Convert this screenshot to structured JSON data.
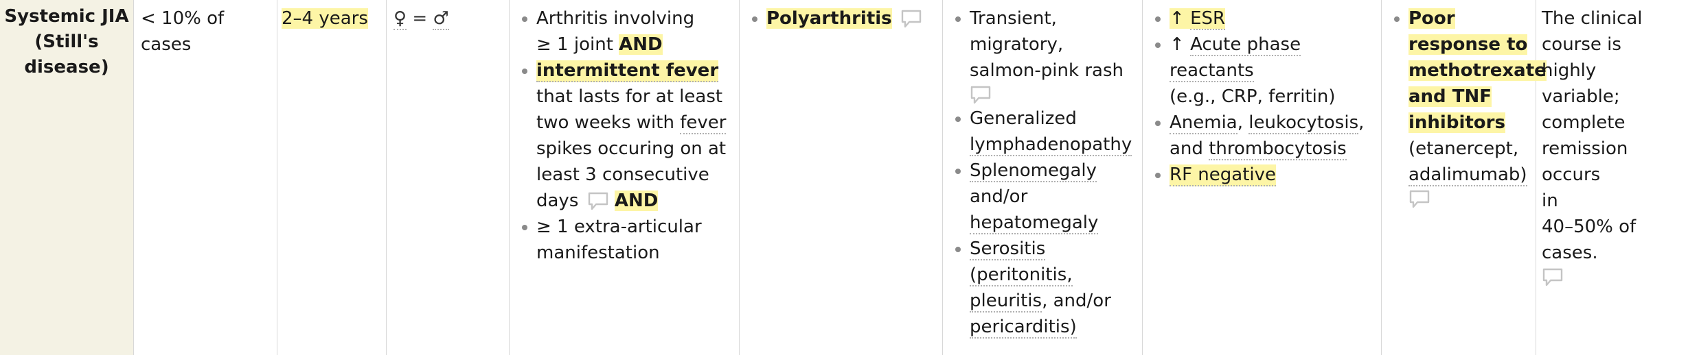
{
  "row": {
    "name_line1": "Systemic JIA",
    "name_line2": "(Still's",
    "name_line3": "disease)",
    "prevalence": "< 10% of cases",
    "age": "2–4 years",
    "sex_female": "♀",
    "sex_equals": "=",
    "sex_male": "♂"
  },
  "criteria": {
    "item1_line1": "Arthritis involving",
    "item1_line2a": "≥ 1 joint",
    "item1_and": "AND",
    "item2_bold": "intermittent fever",
    "item2_rest1": "that lasts for at least",
    "item2_rest2a": "two weeks with",
    "item2_fever": "fever",
    "item2_rest3": "spikes occuring on at",
    "item2_rest4": "least 3 consecutive",
    "item2_days": "days",
    "item2_and": "AND",
    "item3_line1": "≥ 1 extra-articular",
    "item3_line2": "manifestation"
  },
  "joint": {
    "label": "Polyarthritis"
  },
  "features": {
    "f1_l1": "Transient,",
    "f1_l2": "migratory,",
    "f1_l3": "salmon-pink rash",
    "f2_l1": "Generalized",
    "f2_l2": "lymphadenopathy",
    "f3_l1": "Splenomegaly",
    "f3_l2": "and/or",
    "f3_l3": "hepatomegaly",
    "f4_l1": "Serositis",
    "f4_l2": "(peritonitis,",
    "f4_l3a": "pleuritis",
    "f4_l3b": ", and/or",
    "f4_l4": "pericarditis)"
  },
  "labs": {
    "l1_arrow": "↑",
    "l1_text": "ESR",
    "l2_arrow": "↑",
    "l2_text": "Acute phase reactants",
    "l2_sub": "(e.g., CRP, ferritin)",
    "l3_a": "Anemia",
    "l3_b": ", ",
    "l3_c": "leukocytosis",
    "l3_d": ",",
    "l3_e": "and",
    "l3_f": "thrombocytosis",
    "l4": "RF negative"
  },
  "treatment": {
    "t1_l1": "Poor",
    "t1_l2": "response to",
    "t1_l3": "methotrexate",
    "t1_l4": "and TNF",
    "t1_l5": "inhibitors",
    "t1_l6": "(etanercept,",
    "t1_l7": "adalimumab)"
  },
  "prognosis": {
    "l1": "The clinical",
    "l2": "course is highly",
    "l3": "variable;",
    "l4": "complete",
    "l5": "remission occurs",
    "l6": "in",
    "l7": "40–50% of cases."
  },
  "icons": {
    "comment": "comment-icon"
  },
  "colors": {
    "highlight": "#fdf5a6",
    "first_col_bg": "#f4f2e4",
    "border": "#d8d8d8"
  }
}
